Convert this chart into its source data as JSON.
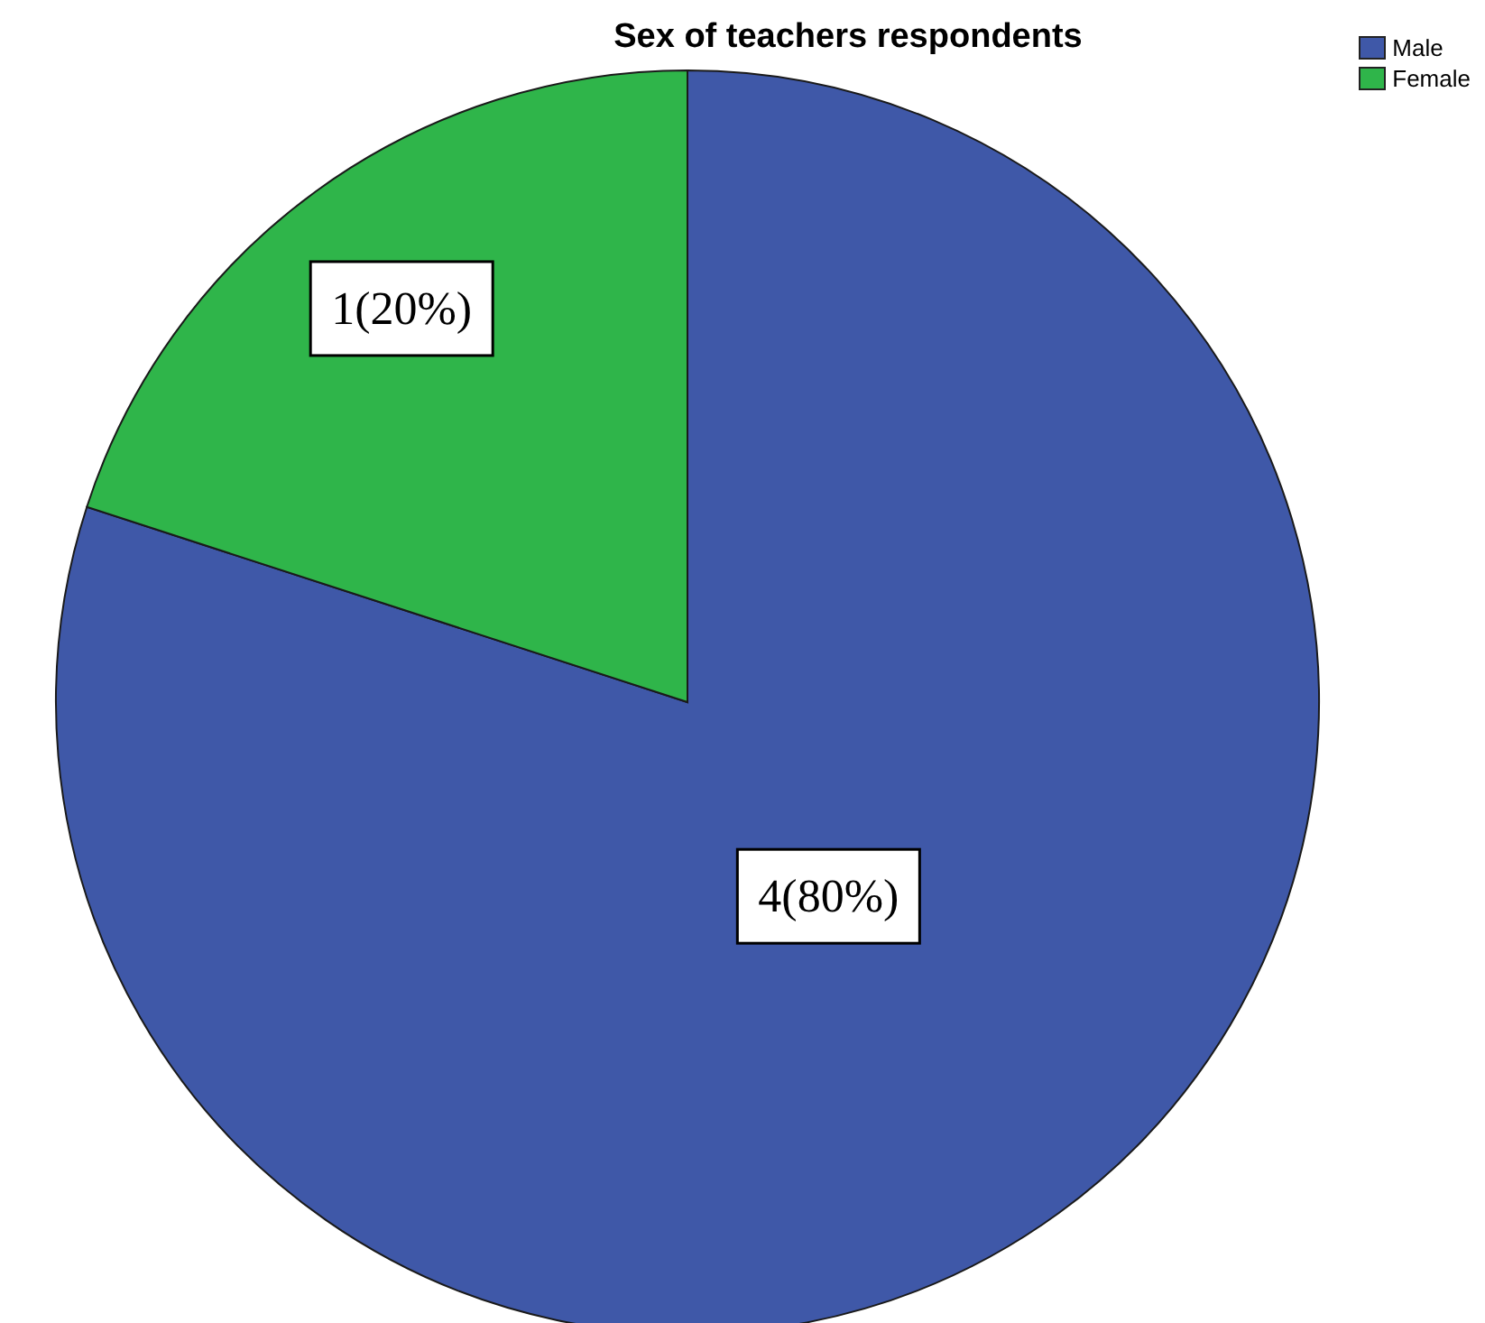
{
  "chart_data": {
    "type": "pie",
    "title": "Sex of teachers respondents",
    "categories": [
      "Male",
      "Female"
    ],
    "values": [
      4,
      1
    ],
    "colors": [
      "#3f58a8",
      "#2fb54a"
    ],
    "value_labels": [
      "4(80%)",
      "1(20%)"
    ],
    "legend": "top right"
  }
}
